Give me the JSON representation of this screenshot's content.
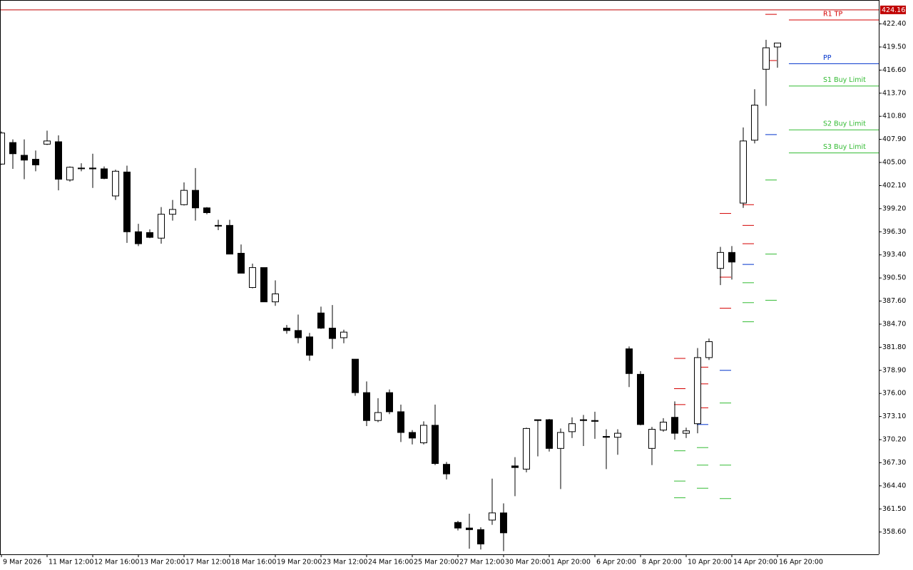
{
  "chart_data": {
    "type": "candlestick",
    "ylim": [
      355.8,
      425.4
    ],
    "yticks": [
      {
        "value": 422.4,
        "label": "422.40"
      },
      {
        "value": 419.5,
        "label": "419.50"
      },
      {
        "value": 416.6,
        "label": "416.60"
      },
      {
        "value": 413.7,
        "label": "413.70"
      },
      {
        "value": 410.8,
        "label": "410.80"
      },
      {
        "value": 407.9,
        "label": "407.90"
      },
      {
        "value": 405,
        "label": "405.00"
      },
      {
        "value": 402.1,
        "label": "402.10"
      },
      {
        "value": 399.2,
        "label": "399.20"
      },
      {
        "value": 396.3,
        "label": "396.30"
      },
      {
        "value": 393.4,
        "label": "393.40"
      },
      {
        "value": 390.5,
        "label": "390.50"
      },
      {
        "value": 387.6,
        "label": "387.60"
      },
      {
        "value": 384.7,
        "label": "384.70"
      },
      {
        "value": 381.8,
        "label": "381.80"
      },
      {
        "value": 378.9,
        "label": "378.90"
      },
      {
        "value": 376,
        "label": "376.00"
      },
      {
        "value": 373.1,
        "label": "373.10"
      },
      {
        "value": 370.2,
        "label": "370.20"
      },
      {
        "value": 367.3,
        "label": "367.30"
      },
      {
        "value": 364.4,
        "label": "364.40"
      },
      {
        "value": 361.5,
        "label": "361.50"
      },
      {
        "value": 358.6,
        "label": "358.60"
      }
    ],
    "x_labels": [
      "9 Mar 2026",
      "11 Mar 12:00",
      "12 Mar 16:00",
      "13 Mar 20:00",
      "17 Mar 12:00",
      "18 Mar 16:00",
      "19 Mar 20:00",
      "23 Mar 12:00",
      "24 Mar 16:00",
      "25 Mar 20:00",
      "27 Mar 12:00",
      "30 Mar 20:00",
      "1 Apr 20:00",
      "6 Apr 20:00",
      "8 Apr 20:00",
      "10 Apr 20:00",
      "14 Apr 20:00",
      "16 Apr 20:00"
    ],
    "open": [
      404.8,
      407.5,
      405.9,
      405.4,
      407.3,
      407.6,
      402.8,
      404.3,
      404.3,
      404.2,
      400.8,
      403.8,
      396.3,
      396.2,
      395.5,
      398.5,
      399.7,
      401.5,
      399.3,
      397.1,
      397.1,
      393.6,
      389.3,
      391.8,
      387.5,
      384.2,
      383.9,
      383.1,
      386.1,
      384.2,
      383.0,
      380.3,
      376.1,
      372.6,
      376.1,
      373.7,
      371.1,
      369.8,
      372.0,
      367.1,
      359.8,
      359.1,
      358.9,
      360.1,
      361.0,
      366.9,
      366.5,
      372.7,
      372.7,
      369.1,
      371.2,
      372.7,
      372.6,
      370.6,
      370.5,
      381.6,
      378.4,
      369.1,
      371.4,
      373.0,
      371.0,
      372.2,
      380.5,
      391.7,
      393.7,
      399.9,
      407.8,
      416.7,
      419.5
    ],
    "high": [
      408.9,
      407.9,
      407.9,
      406.5,
      409.0,
      408.4,
      404.5,
      404.9,
      406.1,
      404.5,
      404.1,
      404.6,
      397.3,
      396.6,
      399.4,
      400.3,
      402.5,
      404.3,
      399.4,
      397.8,
      397.8,
      394.7,
      392.3,
      391.8,
      390.2,
      384.6,
      385.9,
      383.6,
      386.9,
      387.1,
      384.0,
      380.3,
      377.5,
      375.4,
      376.5,
      374.6,
      371.4,
      372.5,
      374.6,
      367.4,
      360.0,
      360.9,
      359.2,
      365.3,
      362.2,
      368.0,
      371.7,
      372.7,
      372.8,
      371.6,
      373.0,
      373.3,
      373.7,
      371.5,
      371.5,
      381.9,
      378.8,
      371.8,
      372.9,
      375.0,
      371.7,
      381.7,
      382.9,
      394.4,
      394.5,
      409.4,
      414.2,
      420.4,
      420.0
    ],
    "low": [
      404.7,
      404.2,
      402.9,
      403.9,
      407.2,
      401.5,
      402.6,
      403.9,
      401.8,
      402.9,
      400.3,
      394.9,
      394.5,
      395.5,
      394.8,
      397.7,
      399.6,
      397.7,
      398.5,
      396.5,
      393.5,
      391.1,
      389.2,
      387.5,
      387.0,
      383.5,
      382.3,
      380.1,
      384.1,
      381.6,
      382.3,
      375.7,
      371.9,
      372.4,
      373.4,
      369.9,
      369.6,
      369.6,
      367.0,
      365.2,
      358.8,
      356.5,
      356.4,
      359.5,
      356.2,
      363.1,
      366.1,
      368.1,
      368.7,
      364.0,
      370.4,
      369.4,
      370.3,
      366.5,
      368.3,
      376.8,
      372.0,
      367.0,
      371.2,
      370.2,
      370.4,
      371.0,
      380.2,
      389.6,
      390.3,
      399.3,
      407.4,
      412.1,
      416.9
    ],
    "close": [
      408.7,
      406.1,
      405.3,
      404.7,
      407.7,
      402.9,
      404.4,
      404.3,
      404.2,
      403.0,
      403.9,
      396.3,
      394.8,
      395.6,
      398.5,
      399.1,
      401.5,
      399.3,
      398.7,
      397.1,
      393.5,
      391.1,
      391.8,
      387.5,
      388.5,
      383.9,
      383.0,
      380.8,
      384.2,
      382.9,
      383.7,
      376.1,
      372.6,
      373.6,
      373.7,
      371.1,
      370.4,
      372.0,
      367.2,
      365.9,
      359.1,
      358.9,
      357.1,
      361.0,
      358.5,
      366.7,
      371.6,
      372.6,
      369.1,
      371.1,
      372.2,
      372.6,
      372.5,
      370.5,
      371.0,
      378.5,
      372.1,
      371.5,
      372.4,
      371.0,
      371.3,
      380.5,
      382.5,
      393.7,
      392.5,
      407.7,
      412.2,
      419.4,
      420.0
    ],
    "up_color": "#ffffff",
    "down_color": "#000000",
    "levels": [
      {
        "at": 59,
        "color": "#d40000",
        "values": [
          380.4,
          376.6,
          374.6
        ]
      },
      {
        "at": 59,
        "color": "#33bb33",
        "values": [
          368.8,
          365.0,
          362.9
        ]
      },
      {
        "at": 61,
        "color": "#d40000",
        "values": [
          379.3,
          377.2,
          374.2
        ]
      },
      {
        "at": 61,
        "color": "#0033cc",
        "values": [
          372.1
        ]
      },
      {
        "at": 61,
        "color": "#33bb33",
        "values": [
          369.2,
          367.0,
          364.1
        ]
      },
      {
        "at": 63,
        "color": "#d40000",
        "values": [
          398.6,
          390.6,
          386.7
        ]
      },
      {
        "at": 63,
        "color": "#0033cc",
        "values": [
          378.9
        ]
      },
      {
        "at": 63,
        "color": "#33bb33",
        "values": [
          374.8,
          367.0,
          362.8
        ]
      },
      {
        "at": 65,
        "color": "#d40000",
        "values": [
          399.7,
          397.1,
          394.8
        ]
      },
      {
        "at": 65,
        "color": "#0033cc",
        "values": [
          392.2
        ]
      },
      {
        "at": 65,
        "color": "#33bb33",
        "values": [
          389.9,
          387.4,
          385.0
        ]
      },
      {
        "at": 67,
        "color": "#d40000",
        "values": [
          423.6,
          417.8
        ]
      },
      {
        "at": 67,
        "color": "#0033cc",
        "values": [
          408.5
        ]
      },
      {
        "at": 67,
        "color": "#33bb33",
        "values": [
          402.8,
          393.5,
          387.7
        ]
      }
    ],
    "trade_levels": [
      {
        "label": "R1 TP",
        "value": 422.9,
        "color": "#d40000"
      },
      {
        "label": "PP",
        "value": 417.4,
        "color": "#0033cc"
      },
      {
        "label": "S1 Buy Limit",
        "value": 414.6,
        "color": "#33bb33"
      },
      {
        "label": "S2 Buy Limit",
        "value": 409.1,
        "color": "#33bb33"
      },
      {
        "label": "S3 Buy Limit",
        "value": 406.2,
        "color": "#33bb33"
      }
    ],
    "current_price": 424.16,
    "current_price_color": "#c00000"
  }
}
